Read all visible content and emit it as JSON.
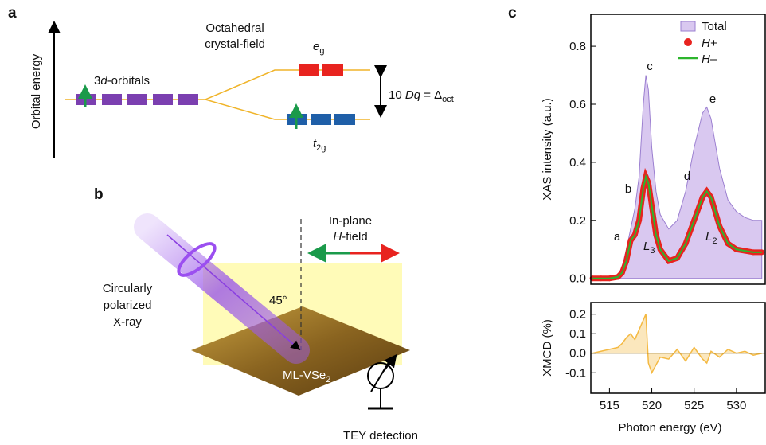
{
  "panel_a": {
    "label": "a",
    "axis_label": "Orbital energy",
    "orbitals_label": [
      "3",
      "d",
      "-orbitals"
    ],
    "field_label": [
      "Octahedral",
      "crystal-field"
    ],
    "eg_label": [
      "e",
      "g"
    ],
    "t2g_label": [
      "t",
      "2g"
    ],
    "splitting_label": [
      "10 ",
      "Dq",
      " = Δ",
      "oct"
    ]
  },
  "panel_b": {
    "label": "b",
    "field_label": [
      "In-plane",
      "H",
      "-field"
    ],
    "xray_label": [
      "Circularly",
      "polarized",
      "X-ray"
    ],
    "angle_label": "45°",
    "sample_label": [
      "ML-VSe",
      "2"
    ],
    "detection_label": "TEY detection"
  },
  "panel_c": {
    "label": "c"
  },
  "chart_data": [
    {
      "type": "xas",
      "ylabel": "XAS intensity (a.u.)",
      "x": [
        513,
        514,
        515,
        516,
        516.5,
        517,
        517.5,
        518,
        518.5,
        519,
        519.3,
        519.6,
        520,
        520.5,
        521,
        522,
        523,
        524,
        525,
        526,
        526.5,
        527,
        528,
        529,
        530,
        531,
        532,
        533
      ],
      "series": [
        {
          "name": "Total",
          "color": "#d9c8f0",
          "values": [
            0,
            0,
            0.002,
            0.01,
            0.04,
            0.1,
            0.17,
            0.24,
            0.35,
            0.6,
            0.7,
            0.65,
            0.45,
            0.3,
            0.22,
            0.17,
            0.2,
            0.3,
            0.45,
            0.57,
            0.59,
            0.55,
            0.38,
            0.27,
            0.23,
            0.21,
            0.2,
            0.2
          ]
        },
        {
          "name": "H+",
          "color": "#e8231f",
          "values": [
            0,
            0,
            0,
            0.005,
            0.02,
            0.06,
            0.13,
            0.15,
            0.2,
            0.31,
            0.35,
            0.33,
            0.25,
            0.15,
            0.1,
            0.06,
            0.07,
            0.12,
            0.2,
            0.28,
            0.3,
            0.28,
            0.18,
            0.12,
            0.1,
            0.095,
            0.09,
            0.09
          ]
        },
        {
          "name": "H–",
          "color": "#2db52d",
          "values": [
            0,
            0,
            0,
            0.005,
            0.02,
            0.06,
            0.13,
            0.15,
            0.2,
            0.31,
            0.35,
            0.33,
            0.25,
            0.15,
            0.1,
            0.06,
            0.07,
            0.12,
            0.2,
            0.28,
            0.3,
            0.28,
            0.18,
            0.12,
            0.1,
            0.095,
            0.09,
            0.09
          ]
        }
      ],
      "peak_labels": [
        "a",
        "b",
        "c",
        "d",
        "e"
      ],
      "edge_labels": [
        [
          "L",
          "3"
        ],
        [
          "L",
          "2"
        ]
      ],
      "xlim": [
        512.8,
        533.4
      ],
      "ylim": [
        -0.02,
        0.91
      ],
      "yticks": [
        {
          "value": 0,
          "label": "0.0"
        },
        0.2,
        0.4,
        0.6,
        0.8
      ]
    },
    {
      "type": "xmcd",
      "ylabel": "XMCD (%)",
      "xlabel": "Photon energy (eV)",
      "color": "#f4b942",
      "x": [
        513,
        514,
        515,
        516,
        516.5,
        517,
        517.5,
        518,
        518.5,
        519,
        519.3,
        519.6,
        520,
        520.5,
        521,
        522,
        523,
        524,
        525,
        526,
        526.5,
        527,
        528,
        529,
        530,
        531,
        532,
        533
      ],
      "values": [
        0.0,
        0.01,
        0.02,
        0.03,
        0.05,
        0.08,
        0.1,
        0.07,
        0.12,
        0.17,
        0.2,
        -0.05,
        -0.1,
        -0.06,
        -0.02,
        -0.03,
        0.02,
        -0.04,
        0.03,
        -0.03,
        -0.05,
        0.01,
        -0.02,
        0.02,
        0.0,
        0.01,
        -0.01,
        0.0
      ],
      "xlim": [
        512.8,
        533.4
      ],
      "ylim": [
        -0.205,
        0.26
      ],
      "xticks": [
        515,
        520,
        525,
        530
      ],
      "yticks": [
        0.2,
        0.1,
        {
          "value": 0,
          "label": "0.0"
        },
        -0.1
      ]
    }
  ]
}
